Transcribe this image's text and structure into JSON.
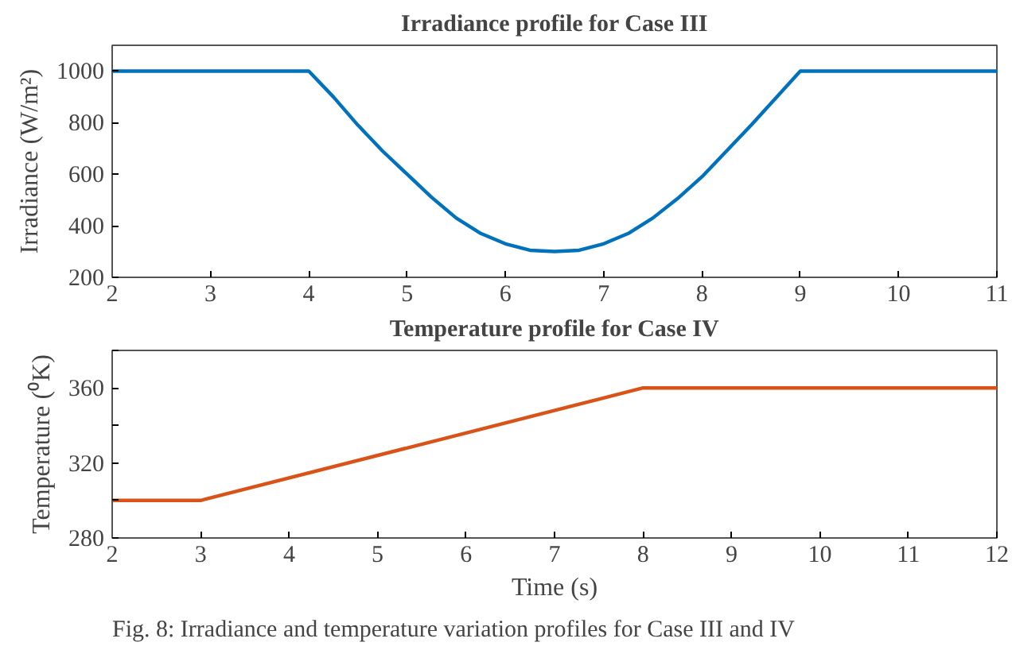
{
  "chart_data": [
    {
      "type": "line",
      "title": "Irradiance profile for Case III",
      "ylabel": "Irradiance (W/m²)",
      "x": [
        2,
        4,
        4.25,
        4.5,
        4.75,
        5,
        5.25,
        5.5,
        5.75,
        6,
        6.25,
        6.5,
        6.75,
        7,
        7.25,
        7.5,
        7.75,
        8,
        8.25,
        8.5,
        8.75,
        9,
        11
      ],
      "series": [
        {
          "color": "#0072bd",
          "values": [
            1000,
            1000,
            900,
            790,
            690,
            600,
            510,
            430,
            370,
            330,
            305,
            300,
            305,
            330,
            370,
            430,
            505,
            590,
            690,
            790,
            895,
            1000,
            1000
          ]
        }
      ],
      "xlim": [
        2,
        11
      ],
      "ylim": [
        200,
        1100
      ],
      "xticks": [
        2,
        3,
        4,
        5,
        6,
        7,
        8,
        9,
        10,
        11
      ],
      "yticks": [
        200,
        400,
        600,
        800,
        1000
      ],
      "grid": false,
      "marker": "none",
      "line_style": "solid"
    },
    {
      "type": "line",
      "title": "Temperature profile for Case IV",
      "xlabel": "Time (s)",
      "ylabel": "Temperature (⁰K)",
      "x": [
        2,
        3,
        8,
        12
      ],
      "series": [
        {
          "color": "#d95319",
          "values": [
            300,
            300,
            360,
            360
          ]
        }
      ],
      "xlim": [
        2,
        12
      ],
      "ylim": [
        280,
        380
      ],
      "xticks": [
        2,
        3,
        4,
        5,
        6,
        7,
        8,
        9,
        10,
        11,
        12
      ],
      "yticks": [
        280,
        {
          "value": 300,
          "label": null
        },
        320,
        {
          "value": 340,
          "label": null
        },
        360,
        {
          "value": 380,
          "label": null
        }
      ],
      "grid": false,
      "marker": "none",
      "line_style": "solid",
      "annotations": [
        "Fig. 8: Irradiance and temperature variation profiles for Case III and IV"
      ]
    }
  ]
}
